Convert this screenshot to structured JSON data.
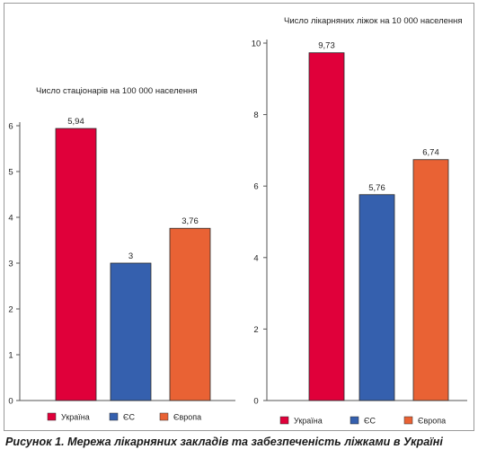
{
  "figure": {
    "caption": "Рисунок 1. Мережа лікарняних закладів та забезпеченість ліжками в Україні"
  },
  "colors": {
    "Україна": "#e0003a",
    "ЄС": "#3560ae",
    "Європа": "#e96234",
    "axis": "#555555"
  },
  "chart_data": [
    {
      "type": "bar",
      "title": "Число стаціонарів на 100 000 населення",
      "xlabel": "",
      "ylabel": "",
      "categories": [
        "Україна",
        "ЄС",
        "Європа"
      ],
      "values": [
        5.94,
        3,
        3.76
      ],
      "value_labels": [
        "5,94",
        "3",
        "3,76"
      ],
      "ylim": [
        0,
        6
      ],
      "yticks": [
        0,
        1,
        2,
        3,
        4,
        5,
        6
      ],
      "ytick_labels": [
        "0",
        "1",
        "2",
        "3",
        "4",
        "5",
        "6"
      ],
      "grid": false,
      "legend": [
        "Україна",
        "ЄС",
        "Європа"
      ],
      "legend_position": "bottom"
    },
    {
      "type": "bar",
      "title": "Число лікарняних ліжок на 10 000 населення",
      "xlabel": "",
      "ylabel": "",
      "categories": [
        "Україна",
        "ЄС",
        "Європа"
      ],
      "values": [
        9.73,
        5.76,
        6.74
      ],
      "value_labels": [
        "9,73",
        "5,76",
        "6,74"
      ],
      "ylim": [
        0,
        10
      ],
      "yticks": [
        0,
        2,
        4,
        6,
        8,
        10
      ],
      "ytick_labels": [
        "0",
        "2",
        "4",
        "6",
        "8",
        "10"
      ],
      "grid": false,
      "legend": [
        "Україна",
        "ЄС",
        "Європа"
      ],
      "legend_position": "bottom"
    }
  ]
}
